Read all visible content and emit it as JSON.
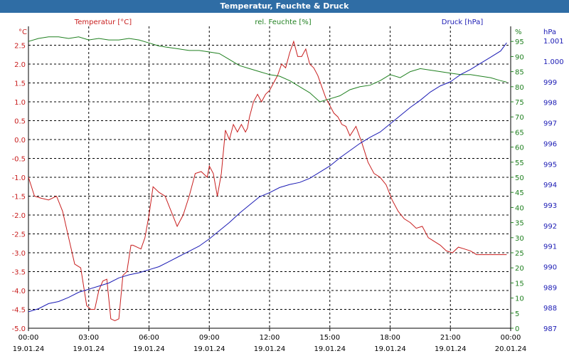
{
  "window": {
    "title": "Temperatur, Feuchte & Druck"
  },
  "colors": {
    "titlebar": "#2f6da5",
    "temperature": "#c81e1e",
    "humidity": "#208020",
    "pressure": "#1a1ab4",
    "grid": "#000000"
  },
  "chart_data": {
    "type": "line",
    "title": "Temperatur, Feuchte & Druck",
    "grid": true,
    "x_ticks": [
      {
        "time": "00:00",
        "date": "19.01.24"
      },
      {
        "time": "03:00",
        "date": "19.01.24"
      },
      {
        "time": "06:00",
        "date": "19.01.24"
      },
      {
        "time": "09:00",
        "date": "19.01.24"
      },
      {
        "time": "12:00",
        "date": "19.01.24"
      },
      {
        "time": "15:00",
        "date": "19.01.24"
      },
      {
        "time": "18:00",
        "date": "19.01.24"
      },
      {
        "time": "21:00",
        "date": "19.01.24"
      },
      {
        "time": "00:00",
        "date": "20.01.24"
      }
    ],
    "axes": {
      "temperature": {
        "label": "Temperatur [°C]",
        "unit": "°C",
        "ylim": [
          -5.0,
          3.0
        ],
        "ticks": [
          "2.5",
          "2.0",
          "1.5",
          "1.0",
          "0.5",
          "0.0",
          "-0.5",
          "-1.0",
          "-1.5",
          "-2.0",
          "-2.5",
          "-3.0",
          "-3.5",
          "-4.0",
          "-4.5",
          "-5.0"
        ]
      },
      "humidity": {
        "label": "rel. Feuchte [%]",
        "unit": "%",
        "ylim": [
          0,
          100
        ],
        "ticks": [
          "95",
          "90",
          "85",
          "80",
          "75",
          "70",
          "65",
          "60",
          "55",
          "50",
          "45",
          "40",
          "35",
          "30",
          "25",
          "20",
          "15",
          "10",
          "5",
          "0"
        ]
      },
      "pressure": {
        "label": "Druck [hPa]",
        "unit": "hPa",
        "ylim": [
          987,
          1001.7
        ],
        "ticks": [
          "1.001",
          "1.000",
          "999",
          "998",
          "997",
          "996",
          "995",
          "994",
          "993",
          "992",
          "991",
          "990",
          "989",
          "988",
          "987"
        ]
      }
    },
    "series": [
      {
        "name": "Temperatur [°C]",
        "axis": "temperature",
        "x": [
          0,
          0.3,
          0.6,
          1.0,
          1.4,
          1.7,
          2.0,
          2.3,
          2.6,
          2.9,
          3.1,
          3.3,
          3.5,
          3.7,
          3.9,
          4.1,
          4.3,
          4.5,
          4.7,
          4.9,
          5.1,
          5.2,
          5.4,
          5.6,
          5.8,
          6.0,
          6.2,
          6.5,
          6.8,
          7.1,
          7.4,
          7.7,
          8.0,
          8.3,
          8.6,
          8.9,
          9.0,
          9.2,
          9.4,
          9.6,
          9.8,
          10.0,
          10.2,
          10.4,
          10.6,
          10.8,
          10.9,
          11.0,
          11.2,
          11.4,
          11.6,
          11.8,
          12.0,
          12.2,
          12.4,
          12.6,
          12.8,
          13.0,
          13.2,
          13.4,
          13.6,
          13.8,
          14.0,
          14.2,
          14.4,
          14.6,
          14.8,
          15.0,
          15.2,
          15.4,
          15.6,
          15.8,
          16.0,
          16.3,
          16.6,
          16.9,
          17.2,
          17.5,
          17.8,
          18.1,
          18.4,
          18.7,
          19.0,
          19.3,
          19.6,
          19.9,
          20.2,
          20.5,
          20.8,
          21.1,
          21.4,
          21.7,
          22.0,
          22.3,
          22.6,
          22.9,
          23.2,
          23.5,
          23.8
        ],
        "values": [
          -1.0,
          -1.5,
          -1.55,
          -1.6,
          -1.5,
          -1.9,
          -2.6,
          -3.3,
          -3.4,
          -4.4,
          -4.5,
          -4.5,
          -4.0,
          -3.75,
          -3.7,
          -4.75,
          -4.8,
          -4.75,
          -3.6,
          -3.5,
          -2.8,
          -2.8,
          -2.85,
          -2.9,
          -2.6,
          -2.0,
          -1.25,
          -1.4,
          -1.5,
          -1.9,
          -2.3,
          -2.0,
          -1.5,
          -0.9,
          -0.85,
          -1.0,
          -0.7,
          -0.9,
          -1.5,
          -0.9,
          0.25,
          0.0,
          0.4,
          0.2,
          0.4,
          0.2,
          0.3,
          0.6,
          1.0,
          1.2,
          1.0,
          1.2,
          1.3,
          1.5,
          1.7,
          2.0,
          1.9,
          2.3,
          2.6,
          2.2,
          2.2,
          2.4,
          2.0,
          1.9,
          1.7,
          1.4,
          1.1,
          0.9,
          0.7,
          0.6,
          0.4,
          0.35,
          0.1,
          0.35,
          -0.1,
          -0.6,
          -0.9,
          -1.0,
          -1.2,
          -1.6,
          -1.9,
          -2.1,
          -2.2,
          -2.35,
          -2.3,
          -2.6,
          -2.7,
          -2.8,
          -2.95,
          -3.0,
          -2.85,
          -2.9,
          -2.95,
          -3.05,
          -3.05,
          -3.05,
          -3.05,
          -3.05,
          -3.05
        ]
      },
      {
        "name": "rel. Feuchte [%]",
        "axis": "humidity",
        "x": [
          0,
          0.5,
          1.0,
          1.5,
          2.0,
          2.5,
          3.0,
          3.5,
          4.0,
          4.5,
          5.0,
          5.5,
          6.0,
          6.5,
          7.0,
          7.5,
          8.0,
          8.5,
          9.0,
          9.5,
          10.0,
          10.5,
          11.0,
          11.5,
          12.0,
          12.5,
          13.0,
          13.5,
          14.0,
          14.5,
          15.0,
          15.5,
          16.0,
          16.5,
          17.0,
          17.5,
          18.0,
          18.5,
          19.0,
          19.5,
          20.0,
          20.5,
          21.0,
          21.5,
          22.0,
          22.5,
          23.0,
          23.5,
          23.8
        ],
        "values": [
          95,
          96,
          96.5,
          96.5,
          96,
          96.5,
          95.5,
          96,
          95.5,
          95.5,
          96,
          95.5,
          94.5,
          93.5,
          93,
          92.5,
          92,
          92,
          91.5,
          91,
          89,
          87,
          86,
          85,
          84,
          83.5,
          82,
          80,
          78,
          75,
          76,
          77,
          79,
          80,
          80.5,
          82,
          84,
          83,
          85,
          86,
          85.5,
          85,
          84.5,
          84,
          84,
          83.5,
          83,
          82,
          81.5
        ]
      },
      {
        "name": "Druck [hPa]",
        "axis": "pressure",
        "x": [
          0,
          0.5,
          1.0,
          1.5,
          2.0,
          2.5,
          3.0,
          3.5,
          4.0,
          4.5,
          5.0,
          5.5,
          6.0,
          6.5,
          7.0,
          7.5,
          8.0,
          8.5,
          9.0,
          9.5,
          10.0,
          10.5,
          11.0,
          11.5,
          12.0,
          12.5,
          13.0,
          13.5,
          14.0,
          14.5,
          15.0,
          15.5,
          16.0,
          16.5,
          17.0,
          17.5,
          18.0,
          18.5,
          19.0,
          19.5,
          20.0,
          20.5,
          21.0,
          21.5,
          22.0,
          22.5,
          23.0,
          23.5,
          23.8
        ],
        "values": [
          987.8,
          987.95,
          988.2,
          988.3,
          988.5,
          988.75,
          988.9,
          989.05,
          989.2,
          989.45,
          989.6,
          989.7,
          989.85,
          990.0,
          990.25,
          990.5,
          990.75,
          991.0,
          991.35,
          991.75,
          992.15,
          992.6,
          993.0,
          993.4,
          993.6,
          993.85,
          994.0,
          994.1,
          994.3,
          994.6,
          994.9,
          995.3,
          995.65,
          996.0,
          996.3,
          996.55,
          996.95,
          997.35,
          997.75,
          998.1,
          998.5,
          998.8,
          999.0,
          999.35,
          999.6,
          999.9,
          1000.2,
          1000.5,
          1000.9
        ]
      }
    ]
  }
}
